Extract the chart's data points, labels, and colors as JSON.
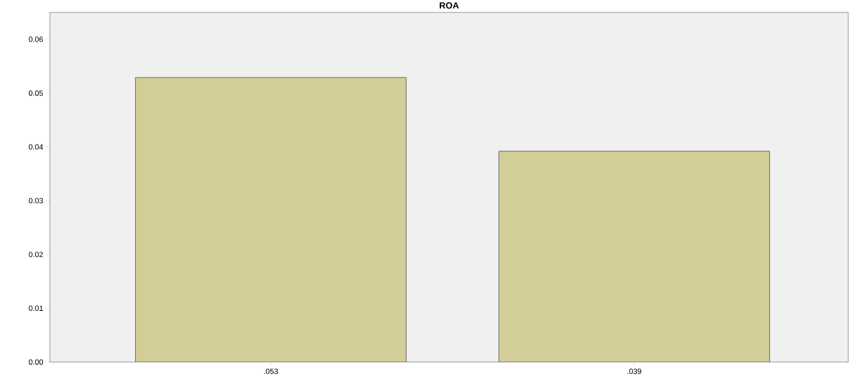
{
  "chart_data": {
    "type": "bar",
    "title": "ROA",
    "categories": [
      ".053",
      ".039"
    ],
    "values": [
      0.0529,
      0.0392
    ],
    "color": "#d3ce97",
    "ylim": [
      0,
      0.065
    ],
    "yticks": [
      {
        "value": 0,
        "label": "0.00"
      },
      {
        "value": 0.01,
        "label": "0.01"
      },
      {
        "value": 0.02,
        "label": "0.02"
      },
      {
        "value": 0.03,
        "label": "0.03"
      },
      {
        "value": 0.04,
        "label": "0.04"
      },
      {
        "value": 0.05,
        "label": "0.05"
      },
      {
        "value": 0.06,
        "label": "0.06"
      }
    ],
    "grid": false
  }
}
